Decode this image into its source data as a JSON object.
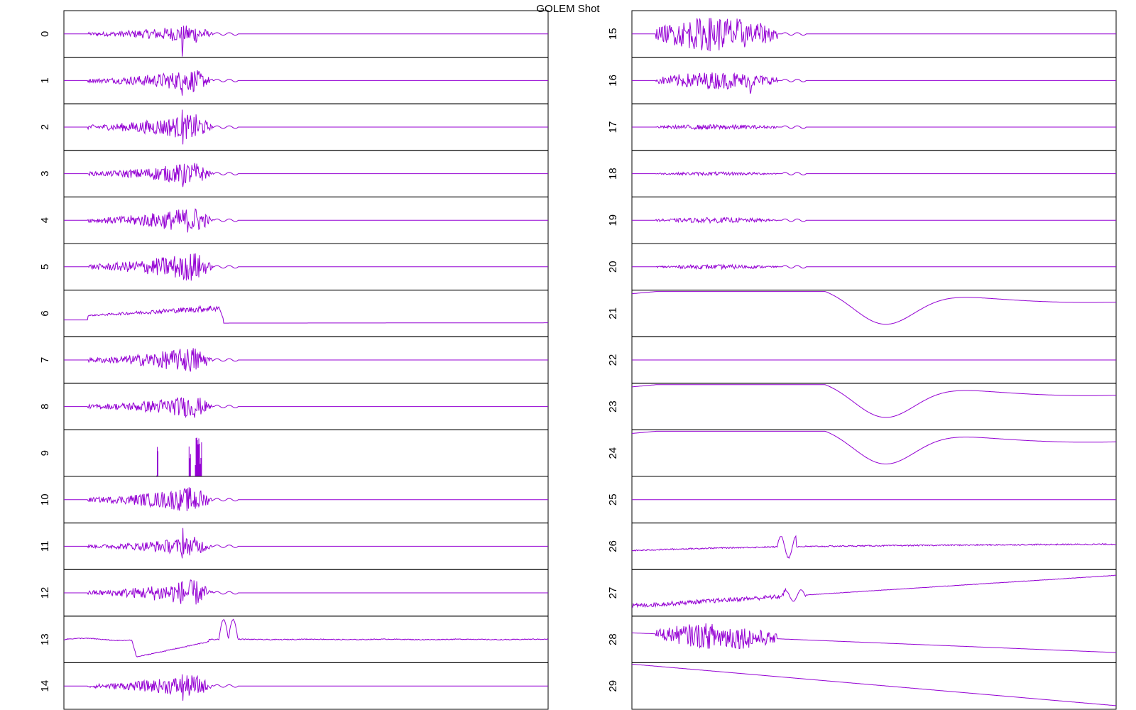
{
  "title": "GOLEM Shot",
  "colors": {
    "trace": "#9400D3",
    "frame": "#000000"
  },
  "chart_data": {
    "type": "line",
    "title": "GOLEM Shot",
    "xlabel": "",
    "ylabel": "",
    "grid": false,
    "panels": [
      {
        "label": "0",
        "kind": "burst",
        "amp": 0.5,
        "spike": 0.9
      },
      {
        "label": "1",
        "kind": "burst",
        "amp": 0.6,
        "spike": 0.4
      },
      {
        "label": "2",
        "kind": "burst",
        "amp": 0.7,
        "spike": 0.3
      },
      {
        "label": "3",
        "kind": "burst",
        "amp": 0.6,
        "spike": 0.3
      },
      {
        "label": "4",
        "kind": "burst",
        "amp": 0.7,
        "spike": 0.2
      },
      {
        "label": "5",
        "kind": "burst",
        "amp": 0.8,
        "spike": 0.2
      },
      {
        "label": "6",
        "kind": "step",
        "amp": 0.8,
        "spike": 0
      },
      {
        "label": "7",
        "kind": "burst",
        "amp": 0.7,
        "spike": 0.2
      },
      {
        "label": "8",
        "kind": "burst",
        "amp": 0.6,
        "spike": 0.2
      },
      {
        "label": "9",
        "kind": "spikes",
        "amp": 0.9,
        "spike": 0
      },
      {
        "label": "10",
        "kind": "burst",
        "amp": 0.7,
        "spike": 0.2
      },
      {
        "label": "11",
        "kind": "burst",
        "amp": 0.5,
        "spike": 0.7
      },
      {
        "label": "12",
        "kind": "burst",
        "amp": 0.7,
        "spike": 0.3
      },
      {
        "label": "13",
        "kind": "slow",
        "amp": 0.8,
        "spike": 0
      },
      {
        "label": "14",
        "kind": "burst",
        "amp": 0.6,
        "spike": 0.5
      },
      {
        "label": "15",
        "kind": "burst2",
        "amp": 0.8,
        "spike": 0.6
      },
      {
        "label": "16",
        "kind": "burst2",
        "amp": 0.4,
        "spike": 0.5
      },
      {
        "label": "17",
        "kind": "burst2",
        "amp": 0.12,
        "spike": 0
      },
      {
        "label": "18",
        "kind": "burst2",
        "amp": 0.08,
        "spike": 0
      },
      {
        "label": "19",
        "kind": "burst2",
        "amp": 0.12,
        "spike": 0
      },
      {
        "label": "20",
        "kind": "burst2",
        "amp": 0.1,
        "spike": 0
      },
      {
        "label": "21",
        "kind": "wave",
        "amp": 1.0,
        "spike": 0
      },
      {
        "label": "22",
        "kind": "flat",
        "amp": 0,
        "spike": 0
      },
      {
        "label": "23",
        "kind": "wave",
        "amp": 0.9,
        "spike": 0
      },
      {
        "label": "24",
        "kind": "wave",
        "amp": 0.85,
        "spike": 0
      },
      {
        "label": "25",
        "kind": "flat",
        "amp": 0,
        "spike": 0
      },
      {
        "label": "26",
        "kind": "drift",
        "amp": 0.4,
        "spike": 0
      },
      {
        "label": "27",
        "kind": "ramp",
        "amp": 0.6,
        "spike": 0
      },
      {
        "label": "28",
        "kind": "decay",
        "amp": 0.6,
        "spike": 0
      },
      {
        "label": "29",
        "kind": "fall",
        "amp": 0.9,
        "spike": 0
      }
    ]
  }
}
